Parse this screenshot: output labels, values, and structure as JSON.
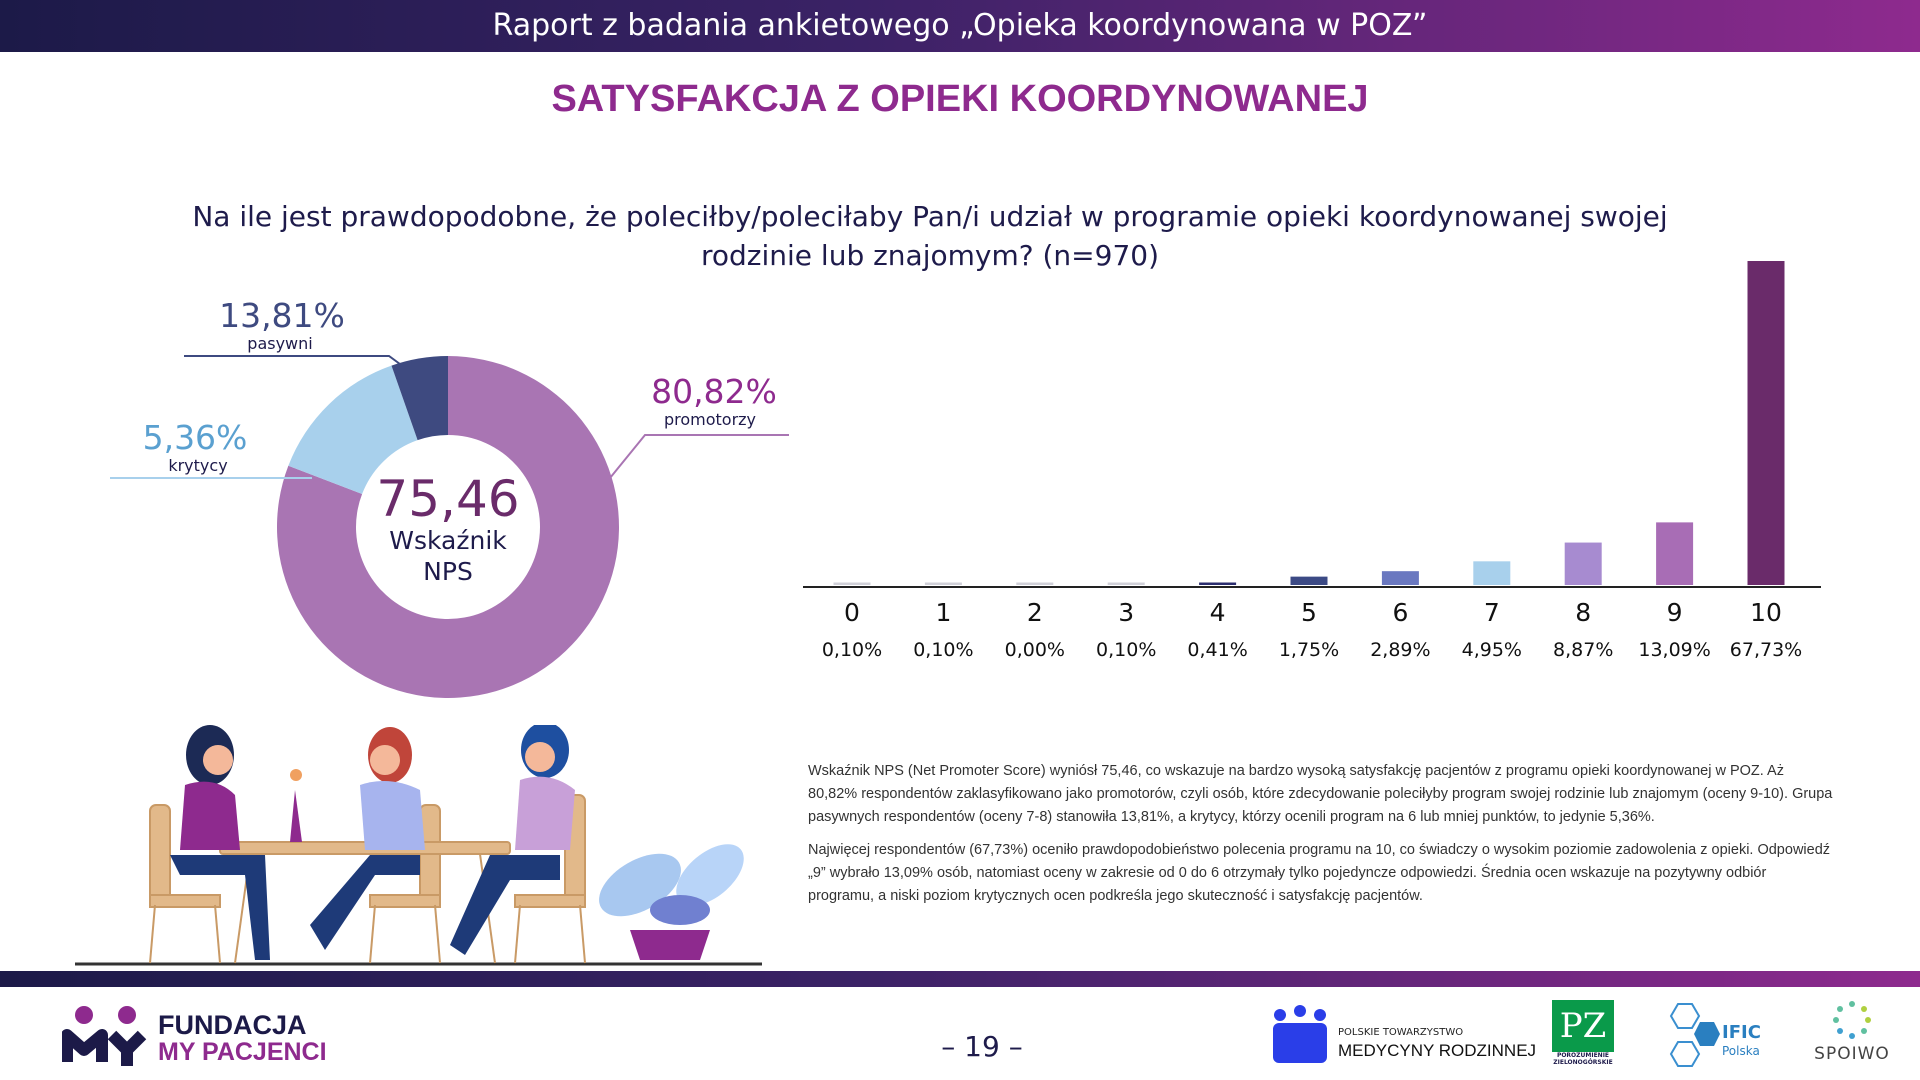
{
  "header": {
    "title": "Raport z badania ankietowego  „Opieka koordynowana w POZ”"
  },
  "section_title": "SATYSFAKCJA Z OPIEKI KOORDYNOWANEJ",
  "question": {
    "line1": "Na ile jest prawdopodobne, że poleciłby/poleciłaby Pan/i udział w programie opieki koordynowanej swojej",
    "line2": "rodzinie lub znajomym? (n=970)"
  },
  "chart_data": [
    {
      "type": "pie",
      "variant": "donut",
      "center_value": "75,46",
      "center_label_1": "Wskaźnik",
      "center_label_2": "NPS",
      "slices": [
        {
          "name": "promotorzy",
          "value": 80.82,
          "label": "80,82%",
          "color": "#a975b3",
          "label_color": "#8e2a8e"
        },
        {
          "name": "pasywni",
          "value": 13.81,
          "label": "13,81%",
          "color": "#a8d0ec",
          "label_color": "#3e4a80"
        },
        {
          "name": "krytycy",
          "value": 5.36,
          "label": "5,36%",
          "color": "#3e4a80",
          "label_color": "#5aa0d0"
        }
      ]
    },
    {
      "type": "bar",
      "categories": [
        "0",
        "1",
        "2",
        "3",
        "4",
        "5",
        "6",
        "7",
        "8",
        "9",
        "10"
      ],
      "values": [
        0.1,
        0.1,
        0.0,
        0.1,
        0.41,
        1.75,
        2.89,
        4.95,
        8.87,
        13.09,
        67.73
      ],
      "labels": [
        "0,10%",
        "0,10%",
        "0,00%",
        "0,10%",
        "0,41%",
        "1,75%",
        "2,89%",
        "4,95%",
        "8,87%",
        "13,09%",
        "67,73%"
      ],
      "colors": [
        "#d0d0d8",
        "#d0d0d8",
        "#d0d0d8",
        "#d0d0d8",
        "#2b2d6e",
        "#3c4a85",
        "#6a78c0",
        "#a8d0ec",
        "#a78bd0",
        "#a86db5",
        "#6a2b6a"
      ],
      "ylim": [
        0,
        67.73
      ],
      "grid": false
    }
  ],
  "description": [
    "Wskaźnik NPS (Net Promoter Score) wyniósł 75,46, co wskazuje na bardzo wysoką satysfakcję pacjentów z programu opieki koordynowanej w POZ. Aż 80,82% respondentów zaklasyfikowano jako promotorów, czyli osób, które zdecydowanie poleciłyby program swojej rodzinie lub znajomym (oceny 9-10). Grupa pasywnych respondentów (oceny 7-8) stanowiła 13,81%, a krytycy, którzy ocenili program na 6 lub mniej punktów, to jedynie 5,36%.",
    "Najwięcej respondentów (67,73%) oceniło prawdopodobieństwo polecenia programu na 10, co świadczy o wysokim poziomie zadowolenia z opieki. Odpowiedź „9” wybrało 13,09% osób, natomiast oceny w zakresie od 0 do 6 otrzymały tylko pojedyncze odpowiedzi. Średnia ocen wskazuje na pozytywny odbiór programu, a niski poziom krytycznych ocen podkreśla jego skuteczność i satysfakcję pacjentów."
  ],
  "footer": {
    "page": "– 19 –",
    "logos": {
      "fundacja_1": "FUNDACJA",
      "fundacja_2": "MY PACJENCI",
      "ptmr_1": "POLSKIE TOWARZYSTWO",
      "ptmr_2": "MEDYCYNY RODZINNEJ",
      "pz_1": "POROZUMIENIE",
      "pz_2": "ZIELONOGÓRSKIE",
      "ific_1": "IFIC",
      "ific_2": "Polska",
      "spoiwo": "SPOIWO"
    }
  }
}
